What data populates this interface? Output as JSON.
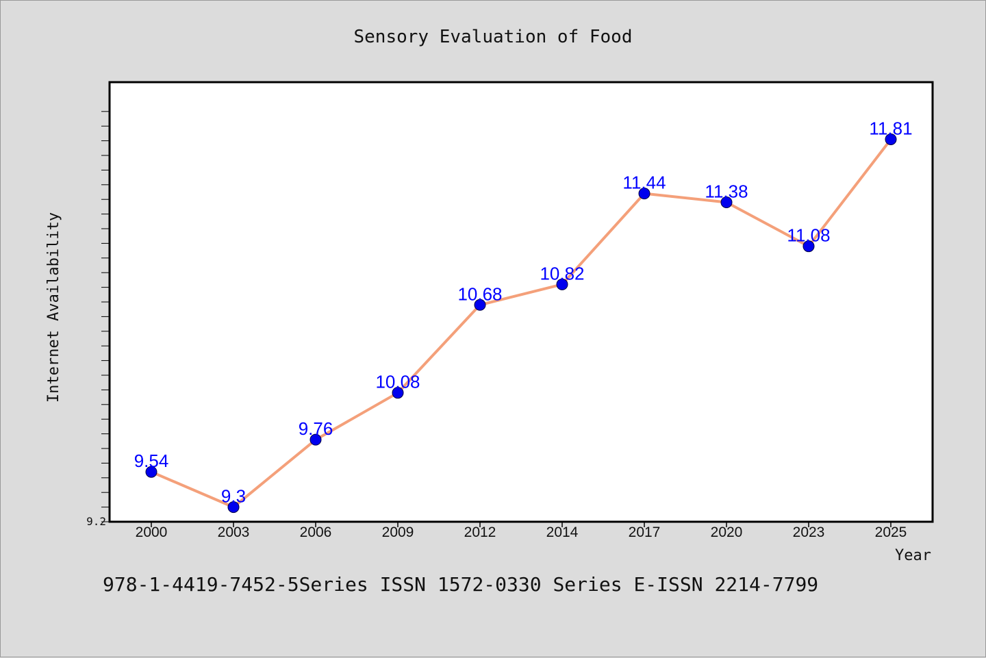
{
  "chart_data": {
    "type": "line",
    "title": "Sensory Evaluation of Food",
    "xlabel": "Year",
    "ylabel": "Internet Availability",
    "categories": [
      "2000",
      "2003",
      "2006",
      "2009",
      "2012",
      "2014",
      "2017",
      "2020",
      "2023",
      "2025"
    ],
    "series": [
      {
        "values": [
          9.54,
          9.3,
          9.76,
          10.08,
          10.68,
          10.82,
          11.44,
          11.38,
          11.08,
          11.81
        ],
        "data_labels": [
          "9.54",
          "9.3",
          "9.76",
          "10.08",
          "10.68",
          "10.82",
          "11.44",
          "11.38",
          "11.08",
          "11.81"
        ],
        "line_color": "#f4a07a",
        "marker_color": "#0000ee"
      }
    ],
    "ylim": [
      9.2,
      12.2
    ],
    "y_tick_labels": [
      "9.2"
    ],
    "grid": false,
    "footer": "978-1-4419-7452-5Series ISSN 1572-0330 Series E-ISSN 2214-7799"
  }
}
